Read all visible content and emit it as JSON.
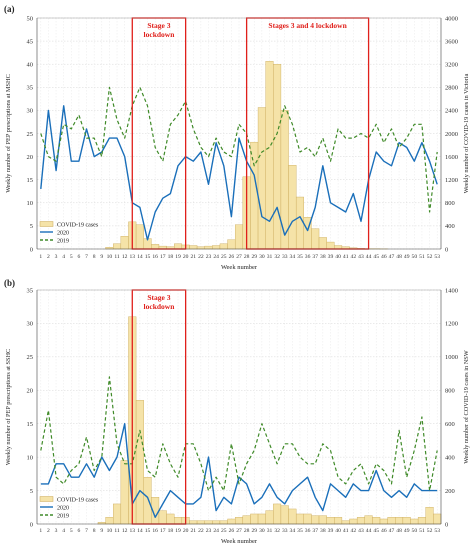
{
  "chart_data": [
    {
      "type": "bar+line",
      "panel_label": "(a)",
      "x": [
        1,
        2,
        3,
        4,
        5,
        6,
        7,
        8,
        9,
        10,
        11,
        12,
        13,
        14,
        15,
        16,
        17,
        18,
        19,
        20,
        21,
        22,
        23,
        24,
        25,
        26,
        27,
        28,
        29,
        30,
        31,
        32,
        33,
        34,
        35,
        36,
        37,
        38,
        39,
        40,
        41,
        42,
        43,
        44,
        45,
        46,
        47,
        48,
        49,
        50,
        51,
        52,
        53
      ],
      "xlabel": "Week number",
      "ylabel_left": "Weekly number of PEP prescriptions at MSHC",
      "ylabel_right": "Weekly number of COVID-19 cases in Victoria",
      "ylim_left": [
        0,
        50
      ],
      "yticks_left": [
        0,
        5,
        10,
        15,
        20,
        25,
        30,
        35,
        40,
        45,
        50
      ],
      "ylim_right": [
        0,
        4000
      ],
      "yticks_right": [
        0,
        400,
        800,
        1200,
        1600,
        2000,
        2400,
        2800,
        3200,
        3600,
        4000
      ],
      "lockdowns": [
        {
          "label_lines": [
            "Stage 3",
            "lockdown"
          ],
          "start_week": 12.5,
          "end_week": 19.5
        },
        {
          "label_lines": [
            "Stages 3 and 4 lockdown"
          ],
          "start_week": 27.5,
          "end_week": 43.5
        }
      ],
      "series": [
        {
          "name": "COVID-19 cases",
          "kind": "bar",
          "axis": "right",
          "color": "#f5e3a8",
          "stroke": "#c9a857",
          "values": [
            0,
            0,
            0,
            0,
            0,
            0,
            0,
            0,
            0,
            30,
            90,
            220,
            470,
            420,
            180,
            80,
            50,
            40,
            90,
            70,
            60,
            40,
            50,
            60,
            90,
            160,
            420,
            1250,
            1850,
            2450,
            3250,
            3200,
            2400,
            1450,
            900,
            550,
            350,
            200,
            120,
            60,
            40,
            20,
            10,
            5,
            5,
            2,
            0,
            0,
            0,
            0,
            0,
            0,
            0
          ]
        },
        {
          "name": "2020",
          "kind": "line",
          "axis": "left",
          "color": "#1a6fba",
          "values": [
            13,
            30,
            17,
            31,
            19,
            19,
            26,
            20,
            21,
            24,
            24,
            20,
            10,
            9,
            2,
            8,
            11,
            12,
            18,
            20,
            19,
            21,
            14,
            23,
            18,
            7,
            24,
            19,
            16,
            7,
            6,
            9,
            3,
            6,
            7,
            4,
            9,
            18,
            10,
            9,
            8,
            12,
            6,
            15,
            21,
            19,
            18,
            23,
            22,
            19,
            23,
            19,
            14
          ]
        },
        {
          "name": "2019",
          "kind": "line",
          "axis": "left",
          "color": "#3f8a28",
          "dashed": true,
          "values": [
            25,
            20,
            19,
            27,
            26,
            29,
            24,
            24,
            20,
            35,
            28,
            24,
            31,
            35,
            31,
            22,
            19,
            27,
            29,
            32,
            26,
            22,
            20,
            24,
            21,
            20,
            27,
            25,
            18,
            21,
            22,
            25,
            31,
            27,
            21,
            22,
            20,
            24,
            19,
            26,
            24,
            24,
            25,
            24,
            27,
            23,
            26,
            22,
            24,
            27,
            27,
            8,
            21
          ]
        }
      ]
    },
    {
      "type": "bar+line",
      "panel_label": "(b)",
      "x": [
        1,
        2,
        3,
        4,
        5,
        6,
        7,
        8,
        9,
        10,
        11,
        12,
        13,
        14,
        15,
        16,
        17,
        18,
        19,
        20,
        21,
        22,
        23,
        24,
        25,
        26,
        27,
        28,
        29,
        30,
        31,
        32,
        33,
        34,
        35,
        36,
        37,
        38,
        39,
        40,
        41,
        42,
        43,
        44,
        45,
        46,
        47,
        48,
        49,
        50,
        51,
        52,
        53
      ],
      "xlabel": "Week number",
      "ylabel_left": "Weekly number of PEP prescriptions at SSHC",
      "ylabel_right": "Weekly number of COVID-19 cases in NSW",
      "ylim_left": [
        0,
        35
      ],
      "yticks_left": [
        0,
        5,
        10,
        15,
        20,
        25,
        30,
        35
      ],
      "ylim_right": [
        0,
        1400
      ],
      "yticks_right": [
        0,
        200,
        400,
        600,
        800,
        1000,
        1200,
        1400
      ],
      "lockdowns": [
        {
          "label_lines": [
            "Stage 3",
            "lockdown"
          ],
          "start_week": 12.5,
          "end_week": 19.5
        }
      ],
      "series": [
        {
          "name": "COVID-19 cases",
          "kind": "bar",
          "axis": "right",
          "color": "#f5e3a8",
          "stroke": "#c9a857",
          "values": [
            0,
            0,
            0,
            0,
            0,
            0,
            0,
            0,
            10,
            40,
            120,
            380,
            1240,
            740,
            280,
            160,
            80,
            60,
            40,
            40,
            20,
            20,
            20,
            20,
            20,
            30,
            40,
            50,
            60,
            60,
            80,
            120,
            110,
            90,
            60,
            60,
            50,
            50,
            40,
            40,
            20,
            30,
            40,
            50,
            40,
            30,
            40,
            40,
            40,
            30,
            40,
            100,
            60
          ]
        },
        {
          "name": "2020",
          "kind": "line",
          "axis": "left",
          "color": "#1a6fba",
          "values": [
            6,
            6,
            9,
            9,
            7,
            7,
            9,
            7,
            10,
            8,
            10,
            15,
            3,
            5,
            4,
            1,
            3,
            5,
            4,
            3,
            3,
            4,
            10,
            2,
            4,
            3,
            7,
            6,
            3,
            4,
            6,
            4,
            3,
            5,
            6,
            7,
            4,
            2,
            6,
            5,
            4,
            6,
            5,
            5,
            8,
            5,
            4,
            5,
            4,
            6,
            5,
            5,
            5
          ]
        },
        {
          "name": "2019",
          "kind": "line",
          "axis": "left",
          "color": "#3f8a28",
          "dashed": true,
          "values": [
            11,
            17,
            7,
            6,
            8,
            9,
            13,
            8,
            10,
            22,
            12,
            9,
            9,
            14,
            8,
            7,
            12,
            9,
            7,
            12,
            12,
            9,
            5,
            7,
            5,
            12,
            6,
            9,
            11,
            15,
            12,
            9,
            12,
            12,
            10,
            9,
            9,
            12,
            11,
            7,
            6,
            8,
            9,
            6,
            9,
            8,
            6,
            14,
            7,
            11,
            16,
            5,
            11
          ]
        }
      ]
    }
  ]
}
